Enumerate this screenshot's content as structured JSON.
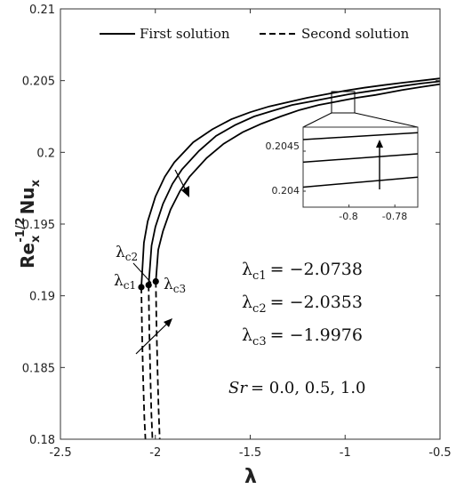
{
  "chart_data": {
    "type": "line",
    "xlabel": "λ",
    "ylabel": {
      "base": "Re",
      "sub": "x",
      "sup": "-1/2",
      "suffix": "Nu",
      "suffix_sub": "x"
    },
    "xlim": [
      -2.5,
      -0.5
    ],
    "ylim": [
      0.18,
      0.21
    ],
    "xticks": [
      -2.5,
      -2,
      -1.5,
      -1,
      -0.5
    ],
    "xtick_labels": [
      "-2.5",
      "-2",
      "-1.5",
      "-1",
      "-0.5"
    ],
    "yticks": [
      0.18,
      0.185,
      0.19,
      0.195,
      0.2,
      0.205,
      0.21
    ],
    "ytick_labels": [
      "0.18",
      "0.185",
      "0.19",
      "0.195",
      "0.2",
      "0.205",
      "0.21"
    ],
    "grid": false,
    "legend": {
      "position": "top",
      "entries": [
        {
          "label": "First solution",
          "style": "solid"
        },
        {
          "label": "Second solution",
          "style": "dashed"
        }
      ]
    },
    "series": [
      {
        "kind": "first",
        "critical_x": -2.0738,
        "critical_y": 0.1906,
        "x": [
          -2.0738,
          -2.06,
          -2.04,
          -2.0,
          -1.95,
          -1.9,
          -1.8,
          -1.7,
          -1.6,
          -1.5,
          -1.4,
          -1.3,
          -1.2,
          -1.1,
          -1.0,
          -0.9,
          -0.8,
          -0.7,
          -0.6,
          -0.5
        ],
        "y": [
          0.1906,
          0.1937,
          0.1952,
          0.1969,
          0.1983,
          0.1993,
          0.2007,
          0.2016,
          0.2023,
          0.2028,
          0.2032,
          0.2035,
          0.2038,
          0.20405,
          0.2043,
          0.2045,
          0.20468,
          0.20485,
          0.205,
          0.20515
        ]
      },
      {
        "kind": "first",
        "critical_x": -2.0353,
        "critical_y": 0.19075,
        "x": [
          -2.0353,
          -2.02,
          -2.0,
          -1.96,
          -1.91,
          -1.86,
          -1.77,
          -1.68,
          -1.58,
          -1.48,
          -1.38,
          -1.28,
          -1.18,
          -1.08,
          -0.98,
          -0.88,
          -0.8,
          -0.7,
          -0.6,
          -0.5
        ],
        "y": [
          0.19075,
          0.1935,
          0.1948,
          0.1964,
          0.1978,
          0.1988,
          0.2001,
          0.20115,
          0.2019,
          0.2025,
          0.2029,
          0.2033,
          0.20355,
          0.2038,
          0.20405,
          0.20425,
          0.2044,
          0.20462,
          0.2048,
          0.20495
        ]
      },
      {
        "kind": "first",
        "critical_x": -1.9976,
        "critical_y": 0.191,
        "x": [
          -1.9976,
          -1.985,
          -1.96,
          -1.92,
          -1.87,
          -1.82,
          -1.73,
          -1.64,
          -1.54,
          -1.44,
          -1.34,
          -1.24,
          -1.14,
          -1.04,
          -0.94,
          -0.84,
          -0.8,
          -0.7,
          -0.6,
          -0.5
        ],
        "y": [
          0.191,
          0.1932,
          0.1945,
          0.196,
          0.1973,
          0.1983,
          0.1996,
          0.2006,
          0.2014,
          0.202,
          0.2025,
          0.20295,
          0.2033,
          0.20355,
          0.2038,
          0.204,
          0.2041,
          0.20435,
          0.20455,
          0.20475
        ]
      },
      {
        "kind": "second",
        "x": [
          -2.0738,
          -2.07,
          -2.065,
          -2.058,
          -2.052
        ],
        "y": [
          0.1906,
          0.1875,
          0.1845,
          0.1815,
          0.18
        ]
      },
      {
        "kind": "second",
        "x": [
          -2.0353,
          -2.032,
          -2.027,
          -2.021,
          -2.015
        ],
        "y": [
          0.19075,
          0.1878,
          0.1848,
          0.1818,
          0.18
        ]
      },
      {
        "kind": "second",
        "x": [
          -1.9976,
          -1.994,
          -1.989,
          -1.983,
          -1.977
        ],
        "y": [
          0.191,
          0.1881,
          0.1851,
          0.1821,
          0.18
        ]
      }
    ],
    "critical_labels": [
      {
        "text": "λ",
        "sub": "c1"
      },
      {
        "text": "λ",
        "sub": "c2"
      },
      {
        "text": "λ",
        "sub": "c3"
      }
    ],
    "annotations": [
      {
        "text": "λ",
        "sub": "c1",
        "value": "= −2.0738"
      },
      {
        "text": "λ",
        "sub": "c2",
        "value": "= −2.0353"
      },
      {
        "text": "λ",
        "sub": "c3",
        "value": "= −1.9976"
      }
    ],
    "parameter_label": {
      "name": "Sr",
      "values": "= 0.0, 0.5, 1.0"
    },
    "inset": {
      "xlim": [
        -0.82,
        -0.77
      ],
      "ylim": [
        0.2038,
        0.2048
      ],
      "xtick_labels": [
        "-0.8",
        "-0.78"
      ],
      "ytick_labels": [
        "0.2045",
        "0.204"
      ],
      "yticks": [
        0.2045,
        0.204
      ],
      "xticks": [
        -0.8,
        -0.78
      ]
    }
  }
}
